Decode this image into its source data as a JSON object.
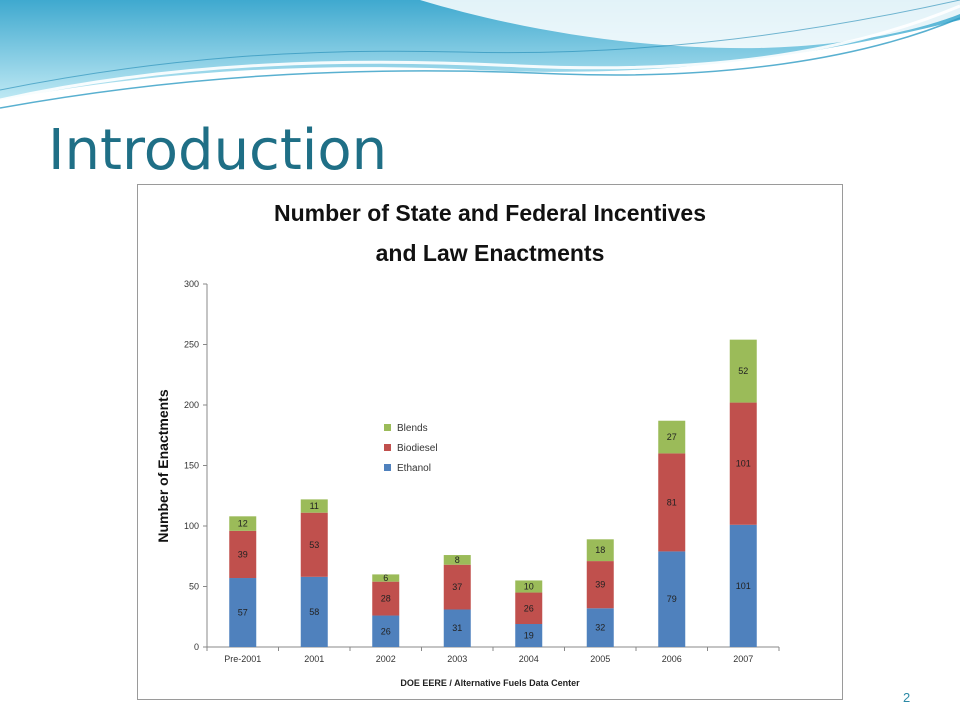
{
  "slide": {
    "title": "Introduction",
    "page_number": "2"
  },
  "colors": {
    "title": "#1f6f86",
    "ethanol": "#4f81bd",
    "biodiesel": "#c0504d",
    "blends": "#9bbb59"
  },
  "chart_data": {
    "type": "bar",
    "stacked": true,
    "title_line1": "Number of State and Federal Incentives",
    "title_line2": "and Law Enactments",
    "xlabel": "DOE EERE / Alternative Fuels Data Center",
    "ylabel": "Number of Enactments",
    "ylim": [
      0,
      300
    ],
    "yticks": [
      0,
      50,
      100,
      150,
      200,
      250,
      300
    ],
    "categories": [
      "Pre-2001",
      "2001",
      "2002",
      "2003",
      "2004",
      "2005",
      "2006",
      "2007"
    ],
    "series": [
      {
        "name": "Ethanol",
        "color": "#4f81bd",
        "values": [
          57,
          58,
          26,
          31,
          19,
          32,
          79,
          101
        ]
      },
      {
        "name": "Biodiesel",
        "color": "#c0504d",
        "values": [
          39,
          53,
          28,
          37,
          26,
          39,
          81,
          101
        ]
      },
      {
        "name": "Blends",
        "color": "#9bbb59",
        "values": [
          12,
          11,
          6,
          8,
          10,
          18,
          27,
          52
        ]
      }
    ],
    "legend_order": [
      "Blends",
      "Biodiesel",
      "Ethanol"
    ],
    "legend_position": "inside-upper-left",
    "grid": false
  }
}
